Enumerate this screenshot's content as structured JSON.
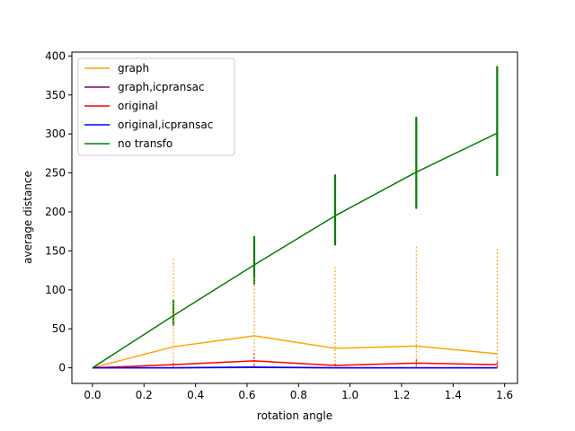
{
  "chart_data": {
    "type": "line",
    "xlabel": "rotation angle",
    "ylabel": "average distance",
    "xlim": [
      -0.08,
      1.65
    ],
    "ylim": [
      -20,
      405
    ],
    "xticks": [
      "0.0",
      "0.2",
      "0.4",
      "0.6",
      "0.8",
      "1.0",
      "1.2",
      "1.4",
      "1.6"
    ],
    "xtick_values": [
      0.0,
      0.2,
      0.4,
      0.6,
      0.8,
      1.0,
      1.2,
      1.4,
      1.6
    ],
    "yticks": [
      "0",
      "50",
      "100",
      "150",
      "200",
      "250",
      "300",
      "350",
      "400"
    ],
    "ytick_values": [
      0,
      50,
      100,
      150,
      200,
      250,
      300,
      350,
      400
    ],
    "legend_position": "upper-left",
    "series": [
      {
        "name": "graph",
        "color": "#ffa500",
        "x": [
          0.0,
          0.314,
          0.628,
          0.942,
          1.257,
          1.571
        ],
        "values": [
          0,
          27,
          41,
          25,
          28,
          18
        ]
      },
      {
        "name": "graph,icpransac",
        "color": "#800080",
        "x": [
          0.0,
          0.314,
          0.628,
          0.942,
          1.257,
          1.571
        ],
        "values": [
          0,
          0,
          0.5,
          0,
          0,
          0
        ]
      },
      {
        "name": "original",
        "color": "#ff0000",
        "x": [
          0.0,
          0.314,
          0.628,
          0.942,
          1.257,
          1.571
        ],
        "values": [
          0,
          4,
          9,
          3,
          6,
          4
        ]
      },
      {
        "name": "original,icpransac",
        "color": "#0000ff",
        "x": [
          0.0,
          0.314,
          0.628,
          0.942,
          1.257,
          1.571
        ],
        "values": [
          0,
          0,
          1,
          0,
          0,
          0
        ]
      },
      {
        "name": "no transfo",
        "color": "#008000",
        "x": [
          0.0,
          0.314,
          0.628,
          0.942,
          1.257,
          1.571
        ],
        "values": [
          0,
          67,
          132,
          195,
          251,
          301
        ]
      }
    ],
    "scatter_ranges": [
      {
        "series": "no transfo",
        "color": "#008000",
        "ranges": [
          [
            0.314,
            55,
            86
          ],
          [
            0.628,
            108,
            168
          ],
          [
            0.942,
            158,
            247
          ],
          [
            1.257,
            205,
            321
          ],
          [
            1.571,
            247,
            386
          ]
        ]
      },
      {
        "series": "graph",
        "color": "#ffa500",
        "ranges": [
          [
            0.314,
            0,
            139
          ],
          [
            0.628,
            0,
            115
          ],
          [
            0.942,
            0,
            129
          ],
          [
            1.257,
            0,
            155
          ],
          [
            1.571,
            0,
            152
          ]
        ]
      },
      {
        "series": "original",
        "color": "#ff0000",
        "ranges": [
          [
            0.314,
            0,
            6
          ],
          [
            0.628,
            0,
            18
          ],
          [
            0.942,
            0,
            5
          ],
          [
            1.257,
            0,
            10
          ],
          [
            1.571,
            0,
            7
          ]
        ]
      }
    ]
  }
}
